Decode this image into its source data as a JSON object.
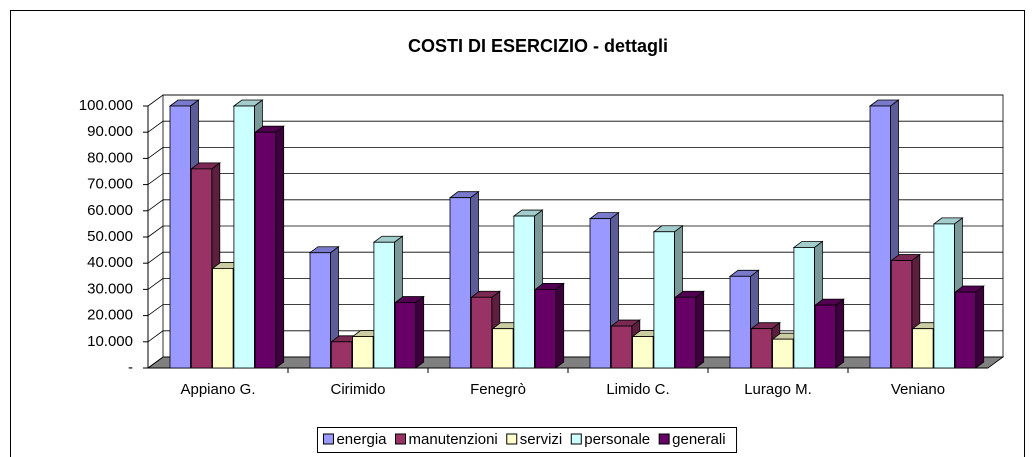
{
  "chart_data": {
    "type": "bar3d",
    "title": "COSTI DI ESERCIZIO - dettagli",
    "categories": [
      "Appiano G.",
      "Cirimido",
      "Fenegrò",
      "Limido C.",
      "Lurago M.",
      "Veniano"
    ],
    "series": [
      {
        "name": "energia",
        "color": "#9999ff",
        "values": [
          100000,
          44000,
          65000,
          57000,
          35000,
          100000
        ]
      },
      {
        "name": "manutenzioni",
        "color": "#993366",
        "values": [
          76000,
          10000,
          27000,
          16000,
          15000,
          41000
        ]
      },
      {
        "name": "servizi",
        "color": "#ffffcc",
        "values": [
          38000,
          12000,
          15000,
          12000,
          11000,
          15000
        ]
      },
      {
        "name": "personale",
        "color": "#ccffff",
        "values": [
          100000,
          48000,
          58000,
          52000,
          46000,
          55000
        ]
      },
      {
        "name": "generali",
        "color": "#660066",
        "values": [
          90000,
          25000,
          30000,
          27000,
          24000,
          29000
        ]
      }
    ],
    "ylim": [
      0,
      100000
    ],
    "yticks": [
      {
        "value": 0,
        "label": "-"
      },
      {
        "value": 10000,
        "label": "10.000"
      },
      {
        "value": 20000,
        "label": "20.000"
      },
      {
        "value": 30000,
        "label": "30.000"
      },
      {
        "value": 40000,
        "label": "40.000"
      },
      {
        "value": 50000,
        "label": "50.000"
      },
      {
        "value": 60000,
        "label": "60.000"
      },
      {
        "value": 70000,
        "label": "70.000"
      },
      {
        "value": 80000,
        "label": "80.000"
      },
      {
        "value": 90000,
        "label": "90.000"
      },
      {
        "value": 100000,
        "label": "100.000"
      }
    ],
    "grid": true,
    "legend": "bottom"
  }
}
